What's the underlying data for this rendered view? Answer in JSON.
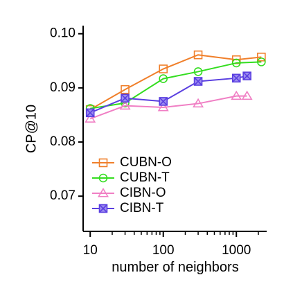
{
  "chart_data": {
    "type": "line",
    "xlabel": "number of neighbors",
    "ylabel": "CP@10",
    "xscale": "log",
    "xlim": [
      8,
      2600
    ],
    "ylim": [
      0.0635,
      0.1015
    ],
    "xticks": [
      {
        "value": 10,
        "label": "10"
      },
      {
        "value": 100,
        "label": "100"
      },
      {
        "value": 1000,
        "label": "1000"
      }
    ],
    "yticks": [
      {
        "value": 0.07,
        "label": "0.07"
      },
      {
        "value": 0.08,
        "label": "0.08"
      },
      {
        "value": 0.09,
        "label": "0.09"
      },
      {
        "value": 0.1,
        "label": "0.10"
      }
    ],
    "grid": false,
    "legend_position": "bottom-left",
    "series": [
      {
        "name": "CUBN-O",
        "color": "#f07f2a",
        "marker": "square",
        "x": [
          10,
          30,
          100,
          300,
          1000,
          2200
        ],
        "y": [
          0.086,
          0.0897,
          0.0935,
          0.0961,
          0.0952,
          0.0957
        ]
      },
      {
        "name": "CUBN-T",
        "color": "#33dd1f",
        "marker": "circle",
        "x": [
          10,
          30,
          100,
          300,
          1000,
          2200
        ],
        "y": [
          0.0862,
          0.0872,
          0.0917,
          0.093,
          0.0946,
          0.0948
        ]
      },
      {
        "name": "CIBN-O",
        "color": "#f07fc4",
        "marker": "triangle",
        "x": [
          10,
          30,
          100,
          300,
          1000,
          1400
        ],
        "y": [
          0.0843,
          0.0867,
          0.0864,
          0.0871,
          0.0885,
          0.0885
        ]
      },
      {
        "name": "CIBN-T",
        "color": "#5a3fe0",
        "marker": "square-x",
        "x": [
          10,
          30,
          100,
          300,
          1000,
          1400
        ],
        "y": [
          0.0854,
          0.0881,
          0.0875,
          0.0912,
          0.0918,
          0.0922
        ]
      }
    ]
  }
}
